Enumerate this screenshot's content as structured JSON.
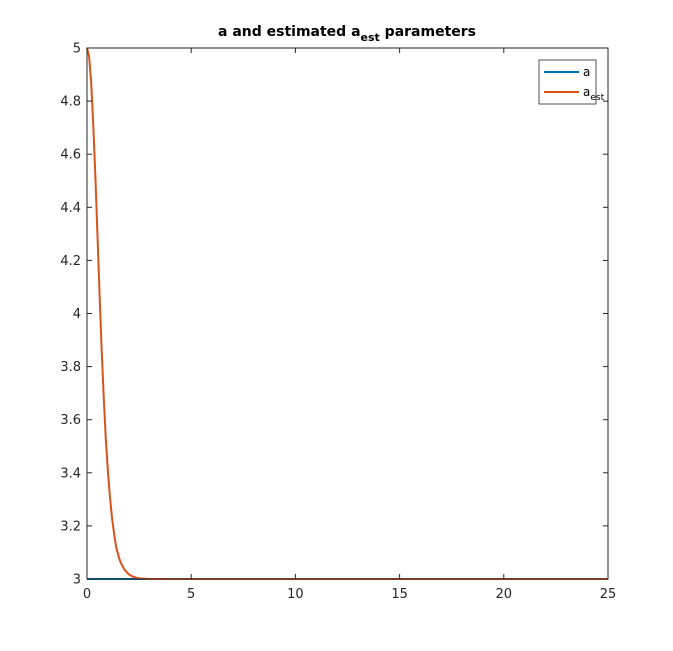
{
  "chart_data": {
    "type": "line",
    "title": {
      "main": "a and estimated a",
      "subscript": "est",
      "suffix": " parameters"
    },
    "xlabel": "",
    "ylabel": "",
    "xlim": [
      0,
      25
    ],
    "ylim": [
      3,
      5
    ],
    "xticks": [
      0,
      5,
      10,
      15,
      20,
      25
    ],
    "yticks": [
      3,
      3.2,
      3.4,
      3.6,
      3.8,
      4,
      4.2,
      4.4,
      4.6,
      4.8,
      5
    ],
    "xtick_labels": [
      "0",
      "5",
      "10",
      "15",
      "20",
      "25"
    ],
    "ytick_labels": [
      "3",
      "3.2",
      "3.4",
      "3.6",
      "3.8",
      "4",
      "4.2",
      "4.4",
      "4.6",
      "4.8",
      "5"
    ],
    "grid": false,
    "legend_position": "top-right",
    "series": [
      {
        "name": "a",
        "name_subscript": "",
        "color": "#0072BD",
        "x": [
          0,
          25
        ],
        "y": [
          3,
          3
        ]
      },
      {
        "name": "a",
        "name_subscript": "est",
        "color": "#D95319",
        "x": [
          0,
          0.1,
          0.2,
          0.3,
          0.4,
          0.5,
          0.6,
          0.7,
          0.8,
          0.9,
          1.0,
          1.1,
          1.2,
          1.3,
          1.4,
          1.5,
          1.6,
          1.8,
          2.0,
          2.2,
          2.4,
          2.6,
          2.8,
          3.0,
          3.5,
          4.0,
          5.0,
          10.0,
          15.0,
          20.0,
          25.0
        ],
        "y": [
          5.0,
          4.97,
          4.87,
          4.71,
          4.52,
          4.3,
          4.08,
          3.87,
          3.69,
          3.53,
          3.41,
          3.31,
          3.23,
          3.17,
          3.12,
          3.09,
          3.065,
          3.035,
          3.018,
          3.009,
          3.004,
          3.002,
          3.001,
          3.0,
          3.0,
          3.0,
          3.0,
          3.0,
          3.0,
          3.0,
          3.0
        ]
      }
    ]
  }
}
